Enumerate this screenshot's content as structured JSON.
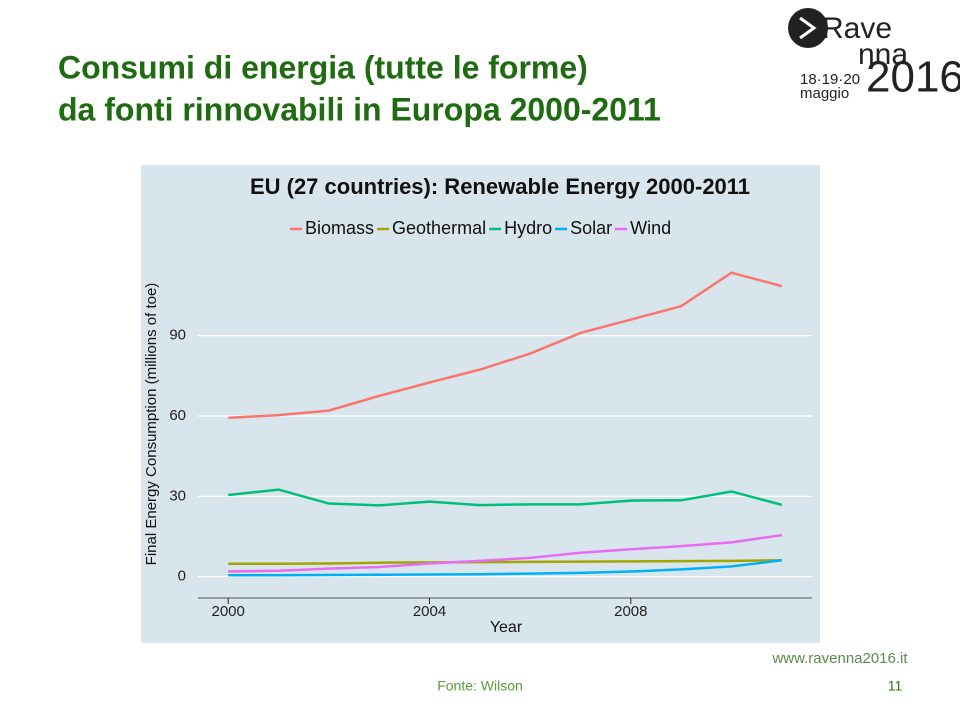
{
  "title": [
    "Consumi di energia (tutte le forme)",
    "da fonti rinnovabili in Europa 2000-2011"
  ],
  "logo": {
    "line1": "Rave",
    "line2": "nna",
    "dates": "18·19·20",
    "month": "maggio",
    "year": "2016"
  },
  "footer": {
    "url": "www.ravenna2016.it",
    "source": "Fonte: Wilson",
    "page": "11"
  },
  "chart_data": {
    "type": "line",
    "title": "EU (27 countries): Renewable Energy 2000-2011",
    "x_label": "Year",
    "y_label": "Final Energy Consumption (millions of toe)",
    "x": [
      2000,
      2001,
      2002,
      2003,
      2004,
      2005,
      2006,
      2007,
      2008,
      2009,
      2010,
      2011
    ],
    "series": [
      {
        "name": "Biomass",
        "color": "#F8766D",
        "values": [
          59.3,
          60.3,
          62.0,
          67.5,
          72.5,
          77.3,
          83.3,
          91.0,
          96.0,
          101.0,
          113.5,
          108.5
        ]
      },
      {
        "name": "Geothermal",
        "color": "#A3A500",
        "values": [
          4.8,
          4.8,
          4.9,
          5.2,
          5.3,
          5.4,
          5.5,
          5.6,
          5.7,
          5.8,
          5.9,
          6.1
        ]
      },
      {
        "name": "Hydro",
        "color": "#00BF7D",
        "values": [
          30.5,
          32.5,
          27.3,
          26.6,
          28.0,
          26.7,
          27.0,
          27.0,
          28.4,
          28.5,
          31.8,
          26.8
        ]
      },
      {
        "name": "Solar",
        "color": "#00B0F6",
        "values": [
          0.5,
          0.5,
          0.6,
          0.7,
          0.8,
          0.9,
          1.1,
          1.4,
          1.9,
          2.7,
          3.8,
          6.1
        ]
      },
      {
        "name": "Wind",
        "color": "#E76BF3",
        "values": [
          1.9,
          2.2,
          3.0,
          3.6,
          4.9,
          5.9,
          7.0,
          8.9,
          10.2,
          11.4,
          12.8,
          15.5
        ]
      }
    ],
    "xlim": [
      1999.4,
      2011.6
    ],
    "xticks": [
      2000,
      2004,
      2008
    ],
    "ylim": [
      -5,
      119
    ],
    "yticks": [
      0,
      30,
      60,
      90
    ],
    "grid": "y",
    "legend": "top"
  }
}
